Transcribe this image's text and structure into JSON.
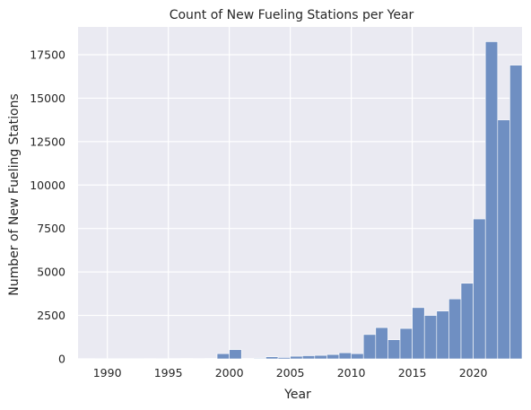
{
  "chart_data": {
    "type": "bar",
    "title": "Count of New Fueling Stations per Year",
    "xlabel": "Year",
    "ylabel": "Number of New Fueling Stations",
    "xlim": [
      1987.6,
      2024.0
    ],
    "ylim": [
      0,
      19100
    ],
    "xticks": [
      1990,
      1995,
      2000,
      2005,
      2010,
      2015,
      2020
    ],
    "yticks": [
      0,
      2500,
      5000,
      7500,
      10000,
      12500,
      15000,
      17500
    ],
    "bin_width": 1.0,
    "bins": [
      1989.0,
      1990.0,
      1991.0,
      1992.0,
      1993.0,
      1994.0,
      1995.0,
      1996.0,
      1997.0,
      1998.0,
      1999.0,
      2000.0,
      2001.0,
      2002.0,
      2003.0,
      2004.0,
      2005.0,
      2006.0,
      2007.0,
      2008.0,
      2009.0,
      2010.0,
      2011.0,
      2012.0,
      2013.0,
      2014.0,
      2015.0,
      2016.0,
      2017.0,
      2018.0,
      2019.0,
      2020.0,
      2021.0,
      2022.0,
      2023.0
    ],
    "values": [
      5,
      5,
      5,
      5,
      10,
      5,
      15,
      20,
      15,
      30,
      300,
      530,
      20,
      40,
      120,
      80,
      150,
      180,
      200,
      250,
      350,
      300,
      1400,
      1800,
      1100,
      1750,
      2950,
      2500,
      2750,
      3450,
      4350,
      8050,
      18250,
      13750,
      16900
    ],
    "grid": true,
    "colors": {
      "bar_fill": "#6f8fc2",
      "bar_edge": "#ffffff",
      "plot_bg": "#eaeaf2",
      "grid": "#ffffff"
    }
  }
}
